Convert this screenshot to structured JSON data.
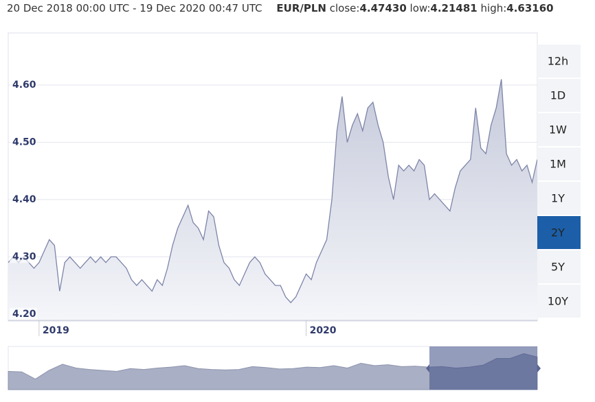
{
  "header": {
    "range": "20 Dec 2018 00:00 UTC - 19 Dec 2020 00:47 UTC",
    "pair": "EUR/PLN",
    "close_label": "close:",
    "close": "4.47430",
    "low_label": "low:",
    "low": "4.21481",
    "high_label": "high:",
    "high": "4.63160"
  },
  "chart_data": {
    "type": "line",
    "categories": [
      null,
      null,
      null,
      null,
      null,
      null,
      "2019",
      null,
      null,
      null,
      null,
      null,
      null,
      null,
      null,
      null,
      null,
      null,
      null,
      null,
      null,
      null,
      null,
      null,
      null,
      null,
      null,
      null,
      null,
      null,
      null,
      null,
      null,
      null,
      null,
      null,
      null,
      null,
      null,
      null,
      null,
      null,
      null,
      null,
      null,
      null,
      null,
      null,
      null,
      null,
      null,
      null,
      null,
      null,
      null,
      null,
      null,
      null,
      "2020",
      null,
      null,
      null,
      null,
      null,
      null,
      null,
      null,
      null,
      null,
      null,
      null,
      null,
      null,
      null,
      null,
      null,
      null,
      null,
      null,
      null,
      null,
      null,
      null,
      null,
      null,
      null,
      null,
      null,
      null,
      null,
      null,
      null,
      null,
      null,
      null,
      null,
      null,
      null,
      null,
      null,
      null,
      null,
      null,
      null
    ],
    "series": [
      {
        "name": "EUR/PLN",
        "color": "#7d84a8",
        "values": [
          4.29,
          4.3,
          4.29,
          4.3,
          4.29,
          4.28,
          4.29,
          4.31,
          4.33,
          4.32,
          4.24,
          4.29,
          4.3,
          4.29,
          4.28,
          4.29,
          4.3,
          4.29,
          4.3,
          4.29,
          4.3,
          4.3,
          4.29,
          4.28,
          4.26,
          4.25,
          4.26,
          4.25,
          4.24,
          4.26,
          4.25,
          4.28,
          4.32,
          4.35,
          4.37,
          4.39,
          4.36,
          4.35,
          4.33,
          4.38,
          4.37,
          4.32,
          4.29,
          4.28,
          4.26,
          4.25,
          4.27,
          4.29,
          4.3,
          4.29,
          4.27,
          4.26,
          4.25,
          4.25,
          4.23,
          4.22,
          4.23,
          4.25,
          4.27,
          4.26,
          4.29,
          4.31,
          4.33,
          4.4,
          4.52,
          4.58,
          4.5,
          4.53,
          4.55,
          4.52,
          4.56,
          4.57,
          4.53,
          4.5,
          4.44,
          4.4,
          4.46,
          4.45,
          4.46,
          4.45,
          4.47,
          4.46,
          4.4,
          4.41,
          4.4,
          4.39,
          4.38,
          4.42,
          4.45,
          4.46,
          4.47,
          4.56,
          4.49,
          4.48,
          4.53,
          4.56,
          4.61,
          4.48,
          4.46,
          4.47,
          4.45,
          4.46,
          4.43,
          4.47
        ]
      }
    ],
    "ylim": [
      4.189,
      4.691
    ],
    "yticks": [
      {
        "value": 4.2,
        "label": "4.20"
      },
      {
        "value": 4.3,
        "label": "4.30"
      },
      {
        "value": 4.4,
        "label": "4.40"
      },
      {
        "value": 4.5,
        "label": "4.50"
      },
      {
        "value": 4.6,
        "label": "4.60"
      }
    ],
    "grid": true,
    "navigator": {
      "color": "#a9afc4",
      "ylim": [
        3.8,
        4.7
      ],
      "values": [
        4.18,
        4.17,
        4.02,
        4.2,
        4.33,
        4.25,
        4.22,
        4.2,
        4.18,
        4.24,
        4.22,
        4.25,
        4.27,
        4.3,
        4.24,
        4.22,
        4.21,
        4.22,
        4.28,
        4.26,
        4.23,
        4.24,
        4.27,
        4.26,
        4.3,
        4.25,
        4.35,
        4.3,
        4.32,
        4.28,
        4.29,
        4.27,
        4.28,
        4.25,
        4.27,
        4.31,
        4.45,
        4.45,
        4.55,
        4.48
      ]
    }
  },
  "buttons": {
    "items": [
      "12h",
      "1D",
      "1W",
      "1M",
      "1Y",
      "2Y",
      "5Y",
      "10Y"
    ],
    "active": "2Y"
  }
}
